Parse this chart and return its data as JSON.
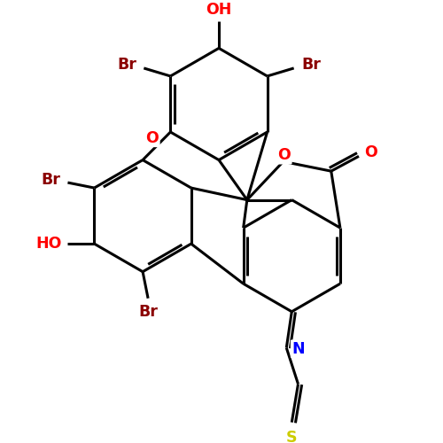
{
  "bg_color": "#ffffff",
  "bond_color": "#000000",
  "bond_width": 2.2,
  "atom_colors": {
    "O": "#ff0000",
    "Br": "#8b0000",
    "N": "#0000ff",
    "S": "#cccc00"
  },
  "font_size": 12.5
}
